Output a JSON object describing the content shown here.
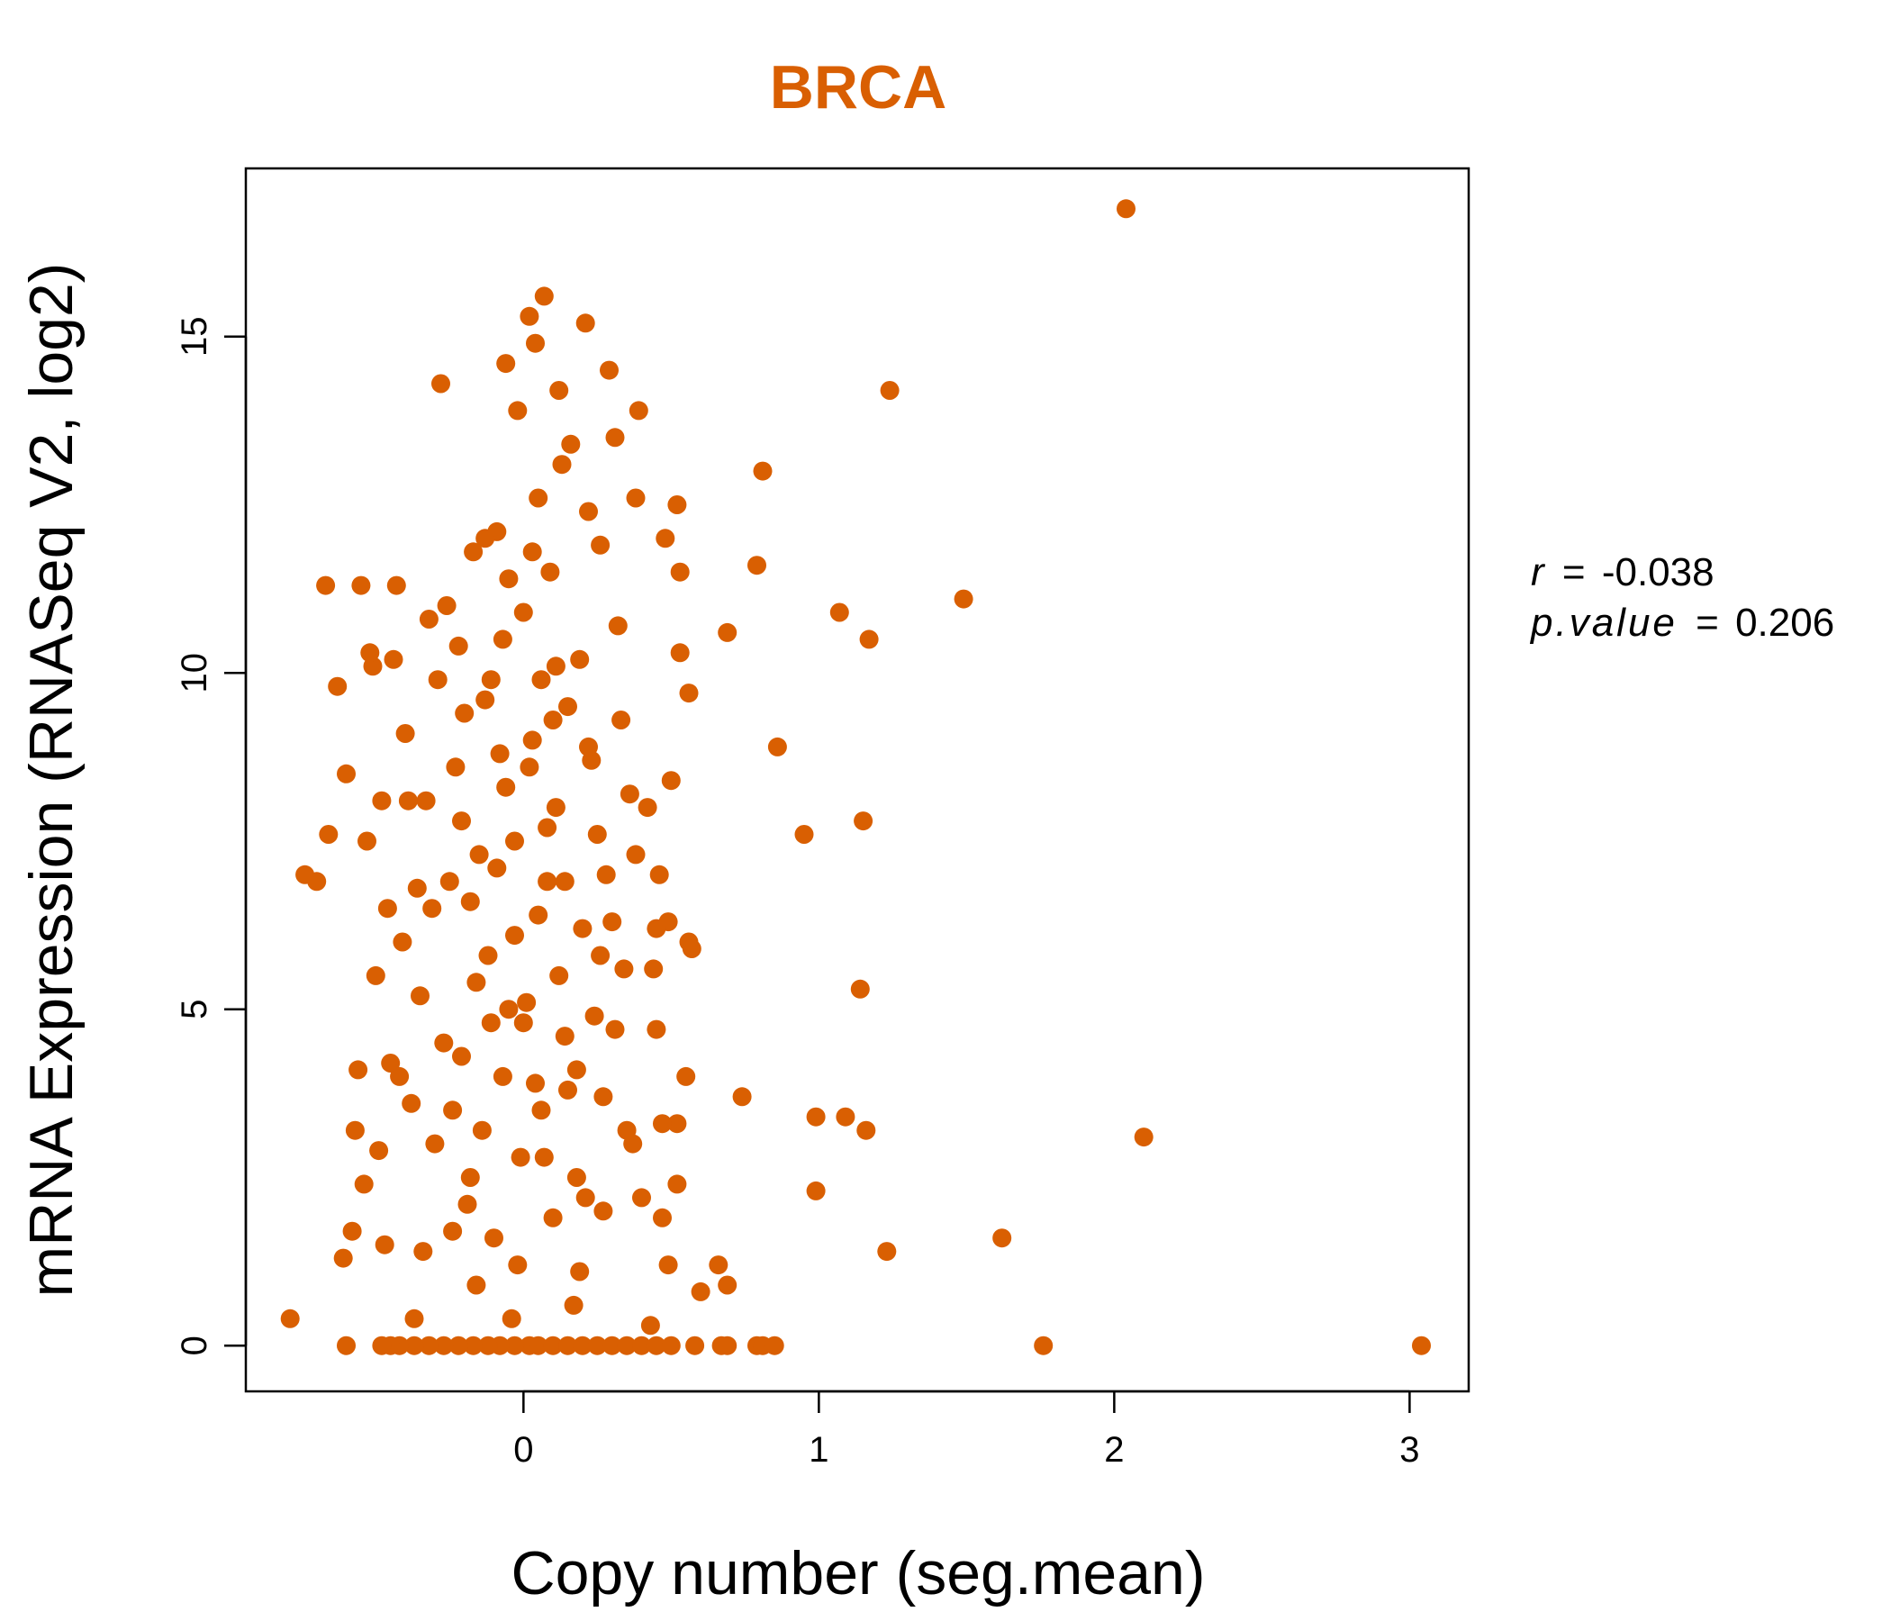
{
  "chart_data": {
    "type": "scatter",
    "title": "BRCA",
    "xlabel": "Copy number (seg.mean)",
    "ylabel": "mRNA Expression (RNASeq V2, log2)",
    "xlim": [
      -0.94,
      3.2
    ],
    "ylim": [
      -0.68,
      17.5
    ],
    "x_ticks": [
      "0",
      "1",
      "2",
      "3"
    ],
    "y_ticks": [
      "0",
      "5",
      "10",
      "15"
    ],
    "grid": false,
    "legend": "none",
    "point_color": "#D95F02",
    "title_color": "#D95F02",
    "annotation": {
      "r_label": "r",
      "r_value": "-0.038",
      "p_label": "p.value",
      "p_value": "0.206"
    },
    "points": [
      [
        2.04,
        16.9
      ],
      [
        3.04,
        0.0
      ],
      [
        2.1,
        3.1
      ],
      [
        1.76,
        0.0
      ],
      [
        1.62,
        1.6
      ],
      [
        1.49,
        11.1
      ],
      [
        1.23,
        1.4
      ],
      [
        1.24,
        14.2
      ],
      [
        1.17,
        10.5
      ],
      [
        1.16,
        3.2
      ],
      [
        1.15,
        7.8
      ],
      [
        1.14,
        5.3
      ],
      [
        1.09,
        3.4
      ],
      [
        1.07,
        10.9
      ],
      [
        0.99,
        2.3
      ],
      [
        0.99,
        3.4
      ],
      [
        0.95,
        7.6
      ],
      [
        0.86,
        8.9
      ],
      [
        0.81,
        13.0
      ],
      [
        0.79,
        11.6
      ],
      [
        0.74,
        3.7
      ],
      [
        0.69,
        10.6
      ],
      [
        0.69,
        0.9
      ],
      [
        0.66,
        1.2
      ],
      [
        0.6,
        0.8
      ],
      [
        0.56,
        9.7
      ],
      [
        0.56,
        6.0
      ],
      [
        0.57,
        5.9
      ],
      [
        0.55,
        4.0
      ],
      [
        0.53,
        11.5
      ],
      [
        0.52,
        12.5
      ],
      [
        0.52,
        3.3
      ],
      [
        0.52,
        2.4
      ],
      [
        0.53,
        10.3
      ],
      [
        0.5,
        8.4
      ],
      [
        0.49,
        6.3
      ],
      [
        0.49,
        1.2
      ],
      [
        0.48,
        12.0
      ],
      [
        0.47,
        1.9
      ],
      [
        0.47,
        3.3
      ],
      [
        0.46,
        7.0
      ],
      [
        0.45,
        4.7
      ],
      [
        0.45,
        6.2
      ],
      [
        0.44,
        5.6
      ],
      [
        0.43,
        0.3
      ],
      [
        0.42,
        8.0
      ],
      [
        0.4,
        2.2
      ],
      [
        0.39,
        13.9
      ],
      [
        0.38,
        12.6
      ],
      [
        0.38,
        7.3
      ],
      [
        0.37,
        3.0
      ],
      [
        0.36,
        8.2
      ],
      [
        0.35,
        3.2
      ],
      [
        0.34,
        5.6
      ],
      [
        0.33,
        9.3
      ],
      [
        0.32,
        10.7
      ],
      [
        0.31,
        13.5
      ],
      [
        0.31,
        4.7
      ],
      [
        0.3,
        6.3
      ],
      [
        0.29,
        14.5
      ],
      [
        0.28,
        7.0
      ],
      [
        0.27,
        3.7
      ],
      [
        0.26,
        11.9
      ],
      [
        0.25,
        7.6
      ],
      [
        0.24,
        4.9
      ],
      [
        0.23,
        8.7
      ],
      [
        0.22,
        12.4
      ],
      [
        0.21,
        15.2
      ],
      [
        0.21,
        2.2
      ],
      [
        0.2,
        6.2
      ],
      [
        0.19,
        10.2
      ],
      [
        0.18,
        2.5
      ],
      [
        0.17,
        0.6
      ],
      [
        0.16,
        13.4
      ],
      [
        0.15,
        9.5
      ],
      [
        0.14,
        4.6
      ],
      [
        0.13,
        13.1
      ],
      [
        0.12,
        14.2
      ],
      [
        0.11,
        8.0
      ],
      [
        0.1,
        1.9
      ],
      [
        0.09,
        11.5
      ],
      [
        0.08,
        6.9
      ],
      [
        0.07,
        15.6
      ],
      [
        0.06,
        3.5
      ],
      [
        0.05,
        12.6
      ],
      [
        0.04,
        14.9
      ],
      [
        0.03,
        9.0
      ],
      [
        0.02,
        15.3
      ],
      [
        0.01,
        5.1
      ],
      [
        0.0,
        10.9
      ],
      [
        -0.01,
        2.8
      ],
      [
        -0.02,
        13.9
      ],
      [
        -0.03,
        7.5
      ],
      [
        -0.04,
        0.4
      ],
      [
        -0.05,
        11.4
      ],
      [
        -0.06,
        14.6
      ],
      [
        -0.07,
        4.0
      ],
      [
        -0.08,
        8.8
      ],
      [
        -0.09,
        12.1
      ],
      [
        -0.1,
        1.6
      ],
      [
        -0.11,
        9.9
      ],
      [
        -0.12,
        5.8
      ],
      [
        -0.13,
        12.0
      ],
      [
        -0.14,
        3.2
      ],
      [
        -0.15,
        7.3
      ],
      [
        -0.16,
        0.9
      ],
      [
        -0.17,
        11.8
      ],
      [
        -0.18,
        6.6
      ],
      [
        -0.19,
        2.1
      ],
      [
        -0.2,
        9.4
      ],
      [
        -0.21,
        4.3
      ],
      [
        -0.22,
        10.4
      ],
      [
        -0.23,
        8.6
      ],
      [
        -0.24,
        1.7
      ],
      [
        -0.25,
        6.9
      ],
      [
        -0.26,
        11.0
      ],
      [
        -0.27,
        4.5
      ],
      [
        -0.28,
        14.3
      ],
      [
        -0.29,
        9.9
      ],
      [
        -0.3,
        3.0
      ],
      [
        -0.31,
        6.5
      ],
      [
        -0.32,
        10.8
      ],
      [
        -0.33,
        8.1
      ],
      [
        -0.34,
        1.4
      ],
      [
        -0.35,
        5.2
      ],
      [
        -0.36,
        6.8
      ],
      [
        -0.37,
        0.4
      ],
      [
        -0.38,
        3.6
      ],
      [
        -0.39,
        8.1
      ],
      [
        -0.4,
        9.1
      ],
      [
        -0.41,
        6.0
      ],
      [
        -0.42,
        4.0
      ],
      [
        -0.43,
        11.3
      ],
      [
        -0.44,
        10.2
      ],
      [
        -0.45,
        4.2
      ],
      [
        -0.46,
        6.5
      ],
      [
        -0.47,
        1.5
      ],
      [
        -0.48,
        8.1
      ],
      [
        -0.49,
        2.9
      ],
      [
        -0.5,
        5.5
      ],
      [
        -0.51,
        10.1
      ],
      [
        -0.52,
        10.3
      ],
      [
        -0.53,
        7.5
      ],
      [
        -0.54,
        2.4
      ],
      [
        -0.55,
        11.3
      ],
      [
        -0.56,
        4.1
      ],
      [
        -0.57,
        3.2
      ],
      [
        -0.58,
        1.7
      ],
      [
        -0.6,
        8.5
      ],
      [
        -0.61,
        1.3
      ],
      [
        -0.63,
        9.8
      ],
      [
        -0.66,
        7.6
      ],
      [
        -0.67,
        11.3
      ],
      [
        -0.7,
        6.9
      ],
      [
        -0.74,
        7.0
      ],
      [
        -0.79,
        0.4
      ],
      [
        0.12,
        5.5
      ],
      [
        0.05,
        6.4
      ],
      [
        -0.03,
        6.1
      ],
      [
        0.08,
        7.7
      ],
      [
        -0.06,
        8.3
      ],
      [
        0.02,
        8.6
      ],
      [
        0.1,
        9.3
      ],
      [
        -0.09,
        7.1
      ],
      [
        0.14,
        6.9
      ],
      [
        0.0,
        4.8
      ],
      [
        0.04,
        3.9
      ],
      [
        -0.05,
        5.0
      ],
      [
        0.07,
        2.8
      ],
      [
        -0.02,
        1.2
      ],
      [
        0.11,
        10.1
      ],
      [
        -0.11,
        4.8
      ],
      [
        0.15,
        3.8
      ],
      [
        0.03,
        11.8
      ],
      [
        -0.07,
        10.5
      ],
      [
        0.06,
        9.9
      ],
      [
        0.26,
        5.8
      ],
      [
        0.18,
        4.1
      ],
      [
        -0.16,
        5.4
      ],
      [
        -0.21,
        7.8
      ],
      [
        0.22,
        8.9
      ],
      [
        -0.13,
        9.6
      ],
      [
        0.19,
        1.1
      ],
      [
        -0.18,
        2.5
      ],
      [
        0.27,
        2.0
      ],
      [
        -0.24,
        3.5
      ],
      [
        0.02,
        0.0
      ],
      [
        0.05,
        0.0
      ],
      [
        0.1,
        0.0
      ],
      [
        0.15,
        0.0
      ],
      [
        0.2,
        0.0
      ],
      [
        0.25,
        0.0
      ],
      [
        0.3,
        0.0
      ],
      [
        0.35,
        0.0
      ],
      [
        0.4,
        0.0
      ],
      [
        0.45,
        0.0
      ],
      [
        0.5,
        0.0
      ],
      [
        0.58,
        0.0
      ],
      [
        0.67,
        0.0
      ],
      [
        0.69,
        0.0
      ],
      [
        0.79,
        0.0
      ],
      [
        0.81,
        0.0
      ],
      [
        0.85,
        0.0
      ],
      [
        -0.03,
        0.0
      ],
      [
        -0.08,
        0.0
      ],
      [
        -0.12,
        0.0
      ],
      [
        -0.17,
        0.0
      ],
      [
        -0.22,
        0.0
      ],
      [
        -0.27,
        0.0
      ],
      [
        -0.32,
        0.0
      ],
      [
        -0.37,
        0.0
      ],
      [
        -0.42,
        0.0
      ],
      [
        -0.45,
        0.0
      ],
      [
        -0.48,
        0.0
      ],
      [
        -0.6,
        0.0
      ]
    ]
  }
}
